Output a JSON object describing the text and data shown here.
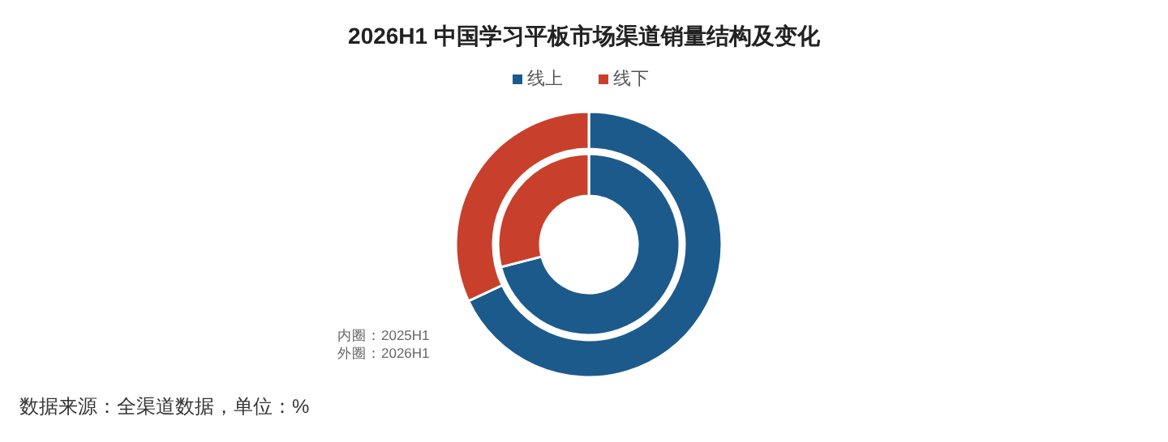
{
  "chart_data": {
    "type": "donut",
    "title": "2026H1 中国学习平板市场渠道销量结构及变化",
    "categories": [
      "线上",
      "线下"
    ],
    "colors": [
      "#1d5a8c",
      "#c8402c"
    ],
    "series": [
      {
        "values": [
          71,
          29
        ]
      },
      {
        "values": [
          68,
          32
        ]
      }
    ],
    "legend": "top",
    "annotations": [
      "内圈：2025H1",
      "外圈：2026H1",
      "数据来源：全渠道数据，单位：%"
    ]
  }
}
